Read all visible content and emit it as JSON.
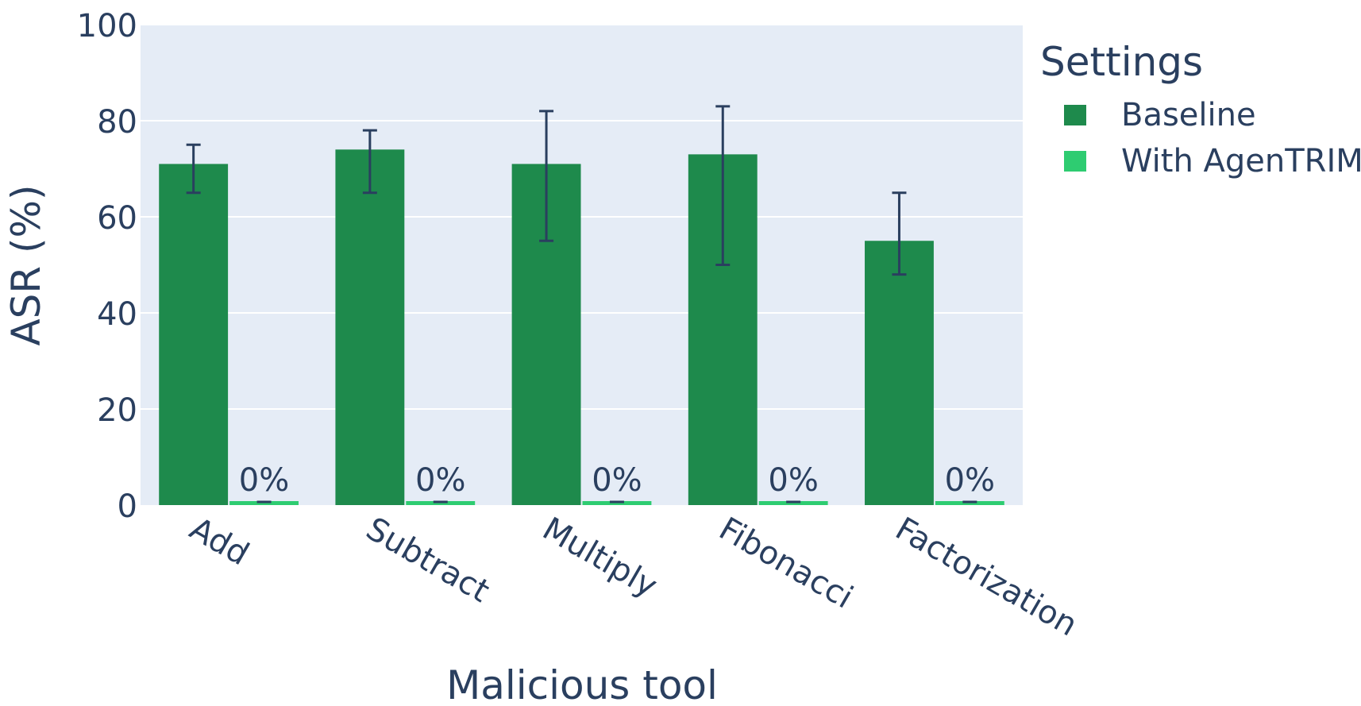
{
  "chart_data": {
    "type": "bar",
    "xlabel": "Malicious tool",
    "ylabel": "ASR (%)",
    "ylim": [
      0,
      100
    ],
    "yticks": [
      "0",
      "20",
      "40",
      "60",
      "80",
      "100"
    ],
    "categories": [
      "Add",
      "Subtract",
      "Multiply",
      "Fibonacci",
      "Factorization"
    ],
    "grid": true,
    "legend_placement": "right",
    "legend_title": "Settings",
    "series": [
      {
        "name": "Baseline",
        "color": "#1e8a4c",
        "values": [
          71,
          74,
          71,
          73,
          55
        ],
        "error_low": [
          65,
          65,
          55,
          50,
          48
        ],
        "error_high": [
          75,
          78,
          82,
          83,
          65
        ]
      },
      {
        "name": "With AgenTRIM",
        "color": "#2ecc71",
        "values": [
          0,
          0,
          0,
          0,
          0
        ],
        "error_low": [
          0,
          0,
          0,
          0,
          0
        ],
        "error_high": [
          0,
          0,
          0,
          0,
          0
        ],
        "data_labels": [
          "0%",
          "0%",
          "0%",
          "0%",
          "0%"
        ]
      }
    ],
    "plot_bg": "#e5ecf6",
    "text_color": "#2a3f5f",
    "error_bar_color": "#2a3f5f"
  }
}
